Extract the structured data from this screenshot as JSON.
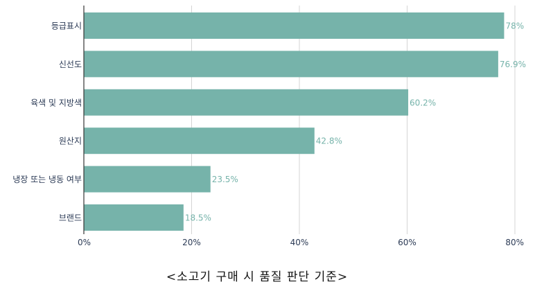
{
  "caption": "<소고기 구매 시 품질 판단 기준>",
  "chart_data": {
    "type": "bar",
    "orientation": "horizontal",
    "categories": [
      "등급표시",
      "신선도",
      "육색 및 지방색",
      "원산지",
      "냉장 또는 냉동 여부",
      "브랜드"
    ],
    "values": [
      78,
      76.9,
      60.2,
      42.8,
      23.5,
      18.5
    ],
    "value_labels": [
      "78%",
      "76.9%",
      "60.2%",
      "42.8%",
      "23.5%",
      "18.5%"
    ],
    "xlim": [
      0,
      80
    ],
    "xticks": [
      0,
      20,
      40,
      60,
      80
    ],
    "xtick_labels": [
      "0%",
      "20%",
      "40%",
      "60%",
      "80%"
    ],
    "grid": "vertical",
    "bar_color": "#76b3aa",
    "label_color": "#76b3aa"
  }
}
